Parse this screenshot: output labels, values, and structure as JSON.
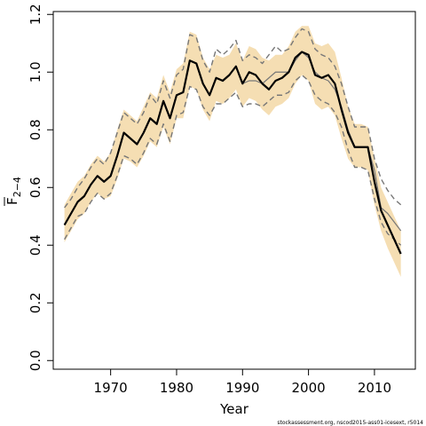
{
  "chart_data": {
    "type": "line",
    "title": "",
    "xlabel": "Year",
    "ylabel": "F",
    "ylabel_subscript": "2−4",
    "xlim": [
      1961.3,
      2016.2
    ],
    "ylim": [
      -0.03,
      1.21
    ],
    "x_ticks": [
      1970,
      1980,
      1990,
      2000,
      2010
    ],
    "y_ticks": [
      0.0,
      0.2,
      0.4,
      0.6,
      0.8,
      1.0,
      1.2
    ],
    "y_tick_labels": [
      "0.0",
      "0.2",
      "0.4",
      "0.6",
      "0.8",
      "1.0",
      "1.2"
    ],
    "grid": false,
    "x": [
      1963,
      1964,
      1965,
      1966,
      1967,
      1968,
      1969,
      1970,
      1971,
      1972,
      1973,
      1974,
      1975,
      1976,
      1977,
      1978,
      1979,
      1980,
      1981,
      1982,
      1983,
      1984,
      1985,
      1986,
      1987,
      1988,
      1989,
      1990,
      1991,
      1992,
      1993,
      1994,
      1995,
      1996,
      1997,
      1998,
      1999,
      2000,
      2001,
      2002,
      2003,
      2004,
      2005,
      2006,
      2007,
      2008,
      2009,
      2010,
      2011,
      2012,
      2013,
      2014
    ],
    "series": [
      {
        "role": "estimate",
        "color": "#000000",
        "values": [
          0.47,
          0.51,
          0.55,
          0.57,
          0.61,
          0.64,
          0.62,
          0.64,
          0.71,
          0.79,
          0.77,
          0.75,
          0.79,
          0.84,
          0.82,
          0.9,
          0.84,
          0.92,
          0.93,
          1.04,
          1.03,
          0.96,
          0.92,
          0.98,
          0.97,
          0.99,
          1.02,
          0.96,
          1.0,
          0.99,
          0.96,
          0.94,
          0.97,
          0.98,
          1.0,
          1.05,
          1.07,
          1.06,
          0.99,
          0.98,
          0.99,
          0.96,
          0.87,
          0.79,
          0.74,
          0.74,
          0.74,
          0.62,
          0.52,
          0.47,
          0.42,
          0.37
        ]
      },
      {
        "role": "reference",
        "color": "#777777",
        "values": [
          0.47,
          0.51,
          0.55,
          0.57,
          0.61,
          0.64,
          0.62,
          0.64,
          0.71,
          0.79,
          0.77,
          0.75,
          0.79,
          0.84,
          0.82,
          0.9,
          0.84,
          0.92,
          0.93,
          1.04,
          1.03,
          0.96,
          0.92,
          0.98,
          0.97,
          0.99,
          1.02,
          0.96,
          0.97,
          0.97,
          0.96,
          0.98,
          1.0,
          1.0,
          1.0,
          1.04,
          1.07,
          1.05,
          1.0,
          0.98,
          0.97,
          0.94,
          0.88,
          0.8,
          0.74,
          0.74,
          0.74,
          0.66,
          0.53,
          0.51,
          0.48,
          0.45
        ]
      },
      {
        "role": "upper-dashed",
        "color": "#777777",
        "values": [
          0.53,
          0.56,
          0.6,
          0.63,
          0.67,
          0.7,
          0.68,
          0.72,
          0.79,
          0.86,
          0.84,
          0.82,
          0.86,
          0.92,
          0.89,
          0.97,
          0.91,
          0.99,
          1.01,
          1.13,
          1.12,
          1.04,
          1.0,
          1.08,
          1.06,
          1.08,
          1.11,
          1.04,
          1.06,
          1.05,
          1.03,
          1.06,
          1.09,
          1.07,
          1.08,
          1.12,
          1.15,
          1.14,
          1.08,
          1.06,
          1.05,
          1.02,
          0.96,
          0.88,
          0.81,
          0.81,
          0.81,
          0.7,
          0.63,
          0.59,
          0.56,
          0.54
        ]
      },
      {
        "role": "lower-dashed",
        "color": "#777777",
        "values": [
          0.42,
          0.46,
          0.5,
          0.51,
          0.55,
          0.58,
          0.56,
          0.58,
          0.64,
          0.71,
          0.7,
          0.68,
          0.72,
          0.77,
          0.75,
          0.82,
          0.76,
          0.85,
          0.86,
          0.95,
          0.94,
          0.88,
          0.85,
          0.89,
          0.89,
          0.91,
          0.93,
          0.88,
          0.89,
          0.89,
          0.88,
          0.9,
          0.92,
          0.92,
          0.93,
          0.97,
          0.99,
          0.97,
          0.92,
          0.9,
          0.89,
          0.86,
          0.81,
          0.73,
          0.67,
          0.67,
          0.66,
          0.56,
          0.48,
          0.44,
          0.42,
          0.4
        ]
      }
    ],
    "band": {
      "color": "#f5deb3",
      "upper": [
        0.54,
        0.58,
        0.62,
        0.64,
        0.68,
        0.71,
        0.69,
        0.72,
        0.8,
        0.87,
        0.85,
        0.83,
        0.88,
        0.93,
        0.91,
        0.99,
        0.93,
        1.01,
        1.03,
        1.14,
        1.13,
        1.05,
        1.01,
        1.06,
        1.05,
        1.06,
        1.1,
        1.04,
        1.09,
        1.08,
        1.05,
        1.04,
        1.06,
        1.06,
        1.09,
        1.14,
        1.16,
        1.16,
        1.1,
        1.09,
        1.1,
        1.07,
        0.98,
        0.88,
        0.82,
        0.82,
        0.81,
        0.7,
        0.6,
        0.55,
        0.5,
        0.45
      ],
      "lower": [
        0.41,
        0.45,
        0.49,
        0.51,
        0.55,
        0.58,
        0.56,
        0.57,
        0.63,
        0.7,
        0.69,
        0.67,
        0.71,
        0.76,
        0.74,
        0.81,
        0.75,
        0.84,
        0.84,
        0.95,
        0.94,
        0.87,
        0.83,
        0.9,
        0.89,
        0.91,
        0.94,
        0.88,
        0.91,
        0.9,
        0.87,
        0.85,
        0.88,
        0.89,
        0.91,
        0.96,
        0.99,
        0.97,
        0.89,
        0.87,
        0.88,
        0.85,
        0.77,
        0.7,
        0.67,
        0.67,
        0.66,
        0.54,
        0.45,
        0.39,
        0.34,
        0.29
      ]
    }
  },
  "footer": {
    "credit": "stockassessment.org, nscod2015-ass01-icesext, r5014"
  }
}
